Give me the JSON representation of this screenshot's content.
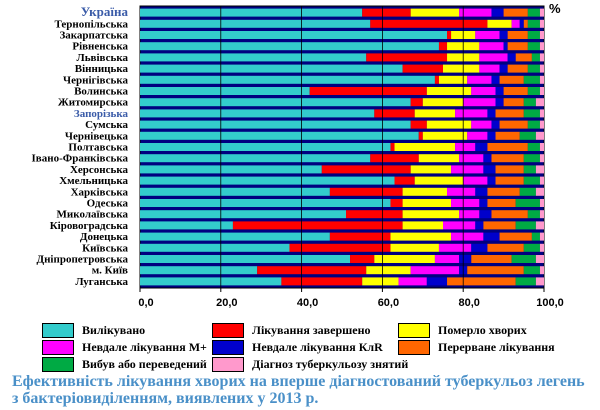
{
  "chart_data": {
    "type": "bar",
    "orientation": "horizontal",
    "stacked": true,
    "unit_label": "%",
    "xlim": [
      0,
      100
    ],
    "xticks": [
      "0,0",
      "20,0",
      "40,0",
      "60,0",
      "80,0",
      "100,0"
    ],
    "gridlines": true,
    "legend_position": "bottom",
    "categories": [
      "Україна",
      "Тернопільська",
      "Закарпатська",
      "Рівненська",
      "Львівська",
      "Вінницька",
      "Чернігівська",
      "Волинська",
      "Житомирська",
      "Запорізька",
      "Сумська",
      "Чернівецька",
      "Полтавська",
      "Івано-Франківська",
      "Херсонська",
      "Хмельницька",
      "Харківська",
      "Одеська",
      "Миколаївська",
      "Кіровоградська",
      "Донецька",
      "Київська",
      "Дніпропетровська",
      "м. Київ",
      "Луганська"
    ],
    "highlight_categories": [
      "Україна",
      "Запорізька"
    ],
    "series": [
      {
        "name": "Вилікувано",
        "color": "#33cccc",
        "values": [
          55,
          57,
          76,
          74,
          56,
          65,
          73,
          42,
          67,
          58,
          67,
          69,
          62,
          57,
          45,
          63,
          47,
          62,
          51,
          23,
          47,
          37,
          52,
          29,
          35
        ]
      },
      {
        "name": "Лікування завершено",
        "color": "#ff0000",
        "values": [
          12,
          29,
          1,
          2,
          20,
          10,
          1,
          29,
          3,
          10,
          4,
          1,
          1,
          12,
          22,
          5,
          18,
          3,
          14,
          42,
          15,
          25,
          6,
          27,
          20
        ]
      },
      {
        "name": "Померло хворих",
        "color": "#ffff00",
        "values": [
          12,
          6,
          6,
          8,
          8,
          9,
          7,
          11,
          10,
          10,
          11,
          11,
          15,
          10,
          10,
          12,
          11,
          12,
          14,
          10,
          15,
          12,
          15,
          11,
          9
        ]
      },
      {
        "name": "Невдале лікування М+",
        "color": "#ff00ff",
        "values": [
          8,
          2,
          6,
          6,
          7,
          5,
          6,
          6,
          8,
          8,
          5,
          5,
          5,
          6,
          8,
          6,
          7,
          7,
          5,
          8,
          8,
          8,
          6,
          12,
          7
        ]
      },
      {
        "name": "Невдале лікування КлR",
        "color": "#0000cc",
        "values": [
          3,
          1,
          2,
          1,
          2,
          2,
          2,
          2,
          2,
          2,
          2,
          2,
          3,
          2,
          3,
          2,
          3,
          2,
          3,
          2,
          4,
          4,
          3,
          2,
          5
        ]
      },
      {
        "name": "Перерване лікування",
        "color": "#ff6600",
        "values": [
          6,
          1,
          5,
          5,
          4,
          5,
          6,
          6,
          5,
          7,
          7,
          6,
          10,
          8,
          7,
          7,
          8,
          7,
          9,
          8,
          8,
          9,
          10,
          14,
          17
        ]
      },
      {
        "name": "Вибув або переведений",
        "color": "#00aa44",
        "values": [
          3,
          3,
          3,
          3,
          2,
          3,
          4,
          3,
          3,
          4,
          3,
          4,
          3,
          4,
          3,
          4,
          4,
          6,
          3,
          5,
          2,
          4,
          6,
          4,
          5
        ]
      },
      {
        "name": "Діагноз туберкульозу знятий",
        "color": "#ff99cc",
        "values": [
          1,
          1,
          1,
          1,
          1,
          1,
          1,
          1,
          2,
          1,
          1,
          2,
          1,
          1,
          2,
          1,
          2,
          1,
          1,
          2,
          1,
          1,
          2,
          1,
          2
        ]
      }
    ],
    "title": "Ефективність лікування хворих на вперше діагностований туберкульоз легень з бактеріовиділенням, виявлених у 2013 р."
  }
}
